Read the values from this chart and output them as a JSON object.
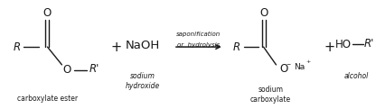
{
  "background_color": "#ffffff",
  "fig_width": 4.16,
  "fig_height": 1.21,
  "dpi": 100,
  "labels": {
    "carboxylate_ester": "carboxylate ester",
    "sodium_hydroxide_line1": "sodium",
    "sodium_hydroxide_line2": "hydroxide",
    "saponification": "saponification",
    "or_hydrolysis": "or  hydrolysis",
    "sodium_carboxylate_line1": "sodium",
    "sodium_carboxylate_line2": "carboxylate",
    "alcohol": "alcohol"
  },
  "font_size_main": 8.5,
  "font_size_small": 5.5,
  "font_size_label": 5.5,
  "font_size_arrow": 5.0,
  "text_color": "#1a1a1a",
  "line_color": "#1a1a1a"
}
